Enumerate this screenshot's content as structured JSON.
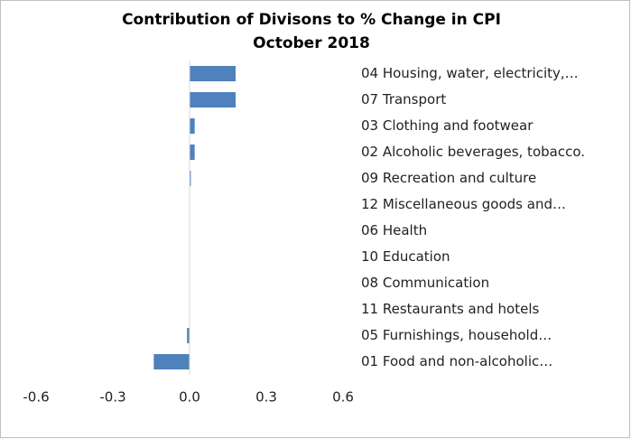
{
  "chart_data": {
    "type": "hbar",
    "title": "Contribution of Divisons to % Change in CPI",
    "subtitle": "October 2018",
    "categories": [
      "04 Housing, water, electricity,…",
      "07 Transport",
      "03 Clothing and footwear",
      "02 Alcoholic beverages, tobacco.",
      "09 Recreation and culture",
      "12 Miscellaneous goods and…",
      "06 Health",
      "10 Education",
      "08 Communication",
      "11 Restaurants and hotels",
      "05 Furnishings, household…",
      "01 Food and non-alcoholic…"
    ],
    "values": [
      0.18,
      0.18,
      0.02,
      0.02,
      0.005,
      0,
      0,
      0,
      0,
      0,
      -0.01,
      -0.14
    ],
    "color": "#4f81bd",
    "xlim": [
      -0.6,
      0.6
    ],
    "xticks": [
      -0.6,
      -0.3,
      {
        "value": 0,
        "label": "0.0"
      },
      0.3,
      0.6
    ],
    "grid": false
  }
}
